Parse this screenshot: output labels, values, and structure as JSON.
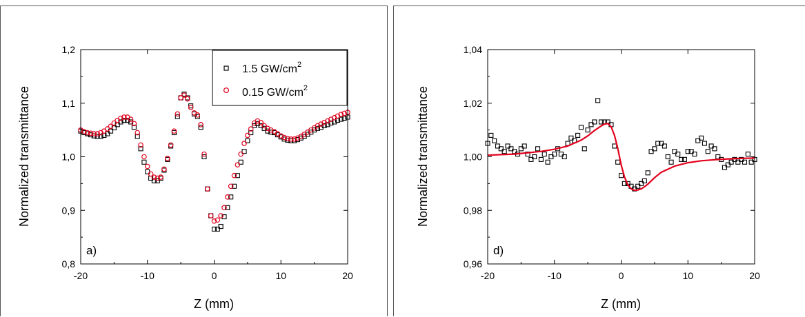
{
  "chart_data": [
    {
      "type": "scatter",
      "panel_label": "a)",
      "xlabel": "Z (mm)",
      "ylabel": "Normalized transmittance",
      "xlim": [
        -20,
        20
      ],
      "ylim": [
        0.8,
        1.2
      ],
      "xticks": [
        -20,
        -10,
        0,
        10,
        20
      ],
      "xtick_labels": [
        "-20",
        "-10",
        "0",
        "10",
        "20"
      ],
      "yticks": [
        0.8,
        0.9,
        1.0,
        1.1,
        1.2
      ],
      "ytick_labels": [
        "0,8",
        "0,9",
        "1,0",
        "1,1",
        "1,2"
      ],
      "legend_position": "top-right",
      "grid": false,
      "series": [
        {
          "name": "1.5 GW/cm",
          "name_sup": "2",
          "marker": "square",
          "color": "#000000",
          "x": [
            -20,
            -19.5,
            -19,
            -18.5,
            -18,
            -17.5,
            -17,
            -16.5,
            -16,
            -15.5,
            -15,
            -14.5,
            -14,
            -13.5,
            -13,
            -12.5,
            -12,
            -11.5,
            -11,
            -10.5,
            -10,
            -9.5,
            -9,
            -8.5,
            -8,
            -7.5,
            -7,
            -6.5,
            -6,
            -5.5,
            -5,
            -4.5,
            -4,
            -3.5,
            -3,
            -2.5,
            -2,
            -1.5,
            -1,
            -0.5,
            0,
            0.5,
            1,
            1.5,
            2,
            2.5,
            3,
            3.5,
            4,
            4.5,
            5,
            5.5,
            6,
            6.5,
            7,
            7.5,
            8,
            8.5,
            9,
            9.5,
            10,
            10.5,
            11,
            11.5,
            12,
            12.5,
            13,
            13.5,
            14,
            14.5,
            15,
            15.5,
            16,
            16.5,
            17,
            17.5,
            18,
            18.5,
            19,
            19.5,
            20
          ],
          "y": [
            1.048,
            1.045,
            1.043,
            1.041,
            1.039,
            1.038,
            1.038,
            1.04,
            1.043,
            1.048,
            1.054,
            1.06,
            1.065,
            1.068,
            1.068,
            1.065,
            1.055,
            1.038,
            1.015,
            0.99,
            0.972,
            0.96,
            0.955,
            0.955,
            0.96,
            0.975,
            0.995,
            1.02,
            1.045,
            1.075,
            1.11,
            1.117,
            1.11,
            1.095,
            1.08,
            1.075,
            1.055,
            1.0,
            0.94,
            0.89,
            0.865,
            0.865,
            0.87,
            0.888,
            0.905,
            0.925,
            0.945,
            0.965,
            0.99,
            1.01,
            1.03,
            1.045,
            1.058,
            1.062,
            1.058,
            1.053,
            1.048,
            1.046,
            1.045,
            1.041,
            1.037,
            1.033,
            1.031,
            1.03,
            1.03,
            1.032,
            1.035,
            1.038,
            1.042,
            1.046,
            1.05,
            1.053,
            1.055,
            1.058,
            1.06,
            1.063,
            1.065,
            1.068,
            1.07,
            1.072,
            1.074
          ]
        },
        {
          "name": "0.15 GW/cm",
          "name_sup": "2",
          "marker": "circle",
          "color": "#e3001b",
          "x": [
            -20,
            -19.5,
            -19,
            -18.5,
            -18,
            -17.5,
            -17,
            -16.5,
            -16,
            -15.5,
            -15,
            -14.5,
            -14,
            -13.5,
            -13,
            -12.5,
            -12,
            -11.5,
            -11,
            -10.5,
            -10,
            -9.5,
            -9,
            -8.5,
            -8,
            -7.5,
            -7,
            -6.5,
            -6,
            -5.5,
            -5,
            -4.5,
            -4,
            -3.5,
            -3,
            -2.5,
            -2,
            -1.5,
            -1,
            -0.5,
            0,
            0.5,
            1,
            1.5,
            2,
            2.5,
            3,
            3.5,
            4,
            4.5,
            5,
            5.5,
            6,
            6.5,
            7,
            7.5,
            8,
            8.5,
            9,
            9.5,
            10,
            10.5,
            11,
            11.5,
            12,
            12.5,
            13,
            13.5,
            14,
            14.5,
            15,
            15.5,
            16,
            16.5,
            17,
            17.5,
            18,
            18.5,
            19,
            19.5,
            20
          ],
          "y": [
            1.05,
            1.047,
            1.045,
            1.044,
            1.043,
            1.043,
            1.045,
            1.048,
            1.052,
            1.057,
            1.063,
            1.068,
            1.072,
            1.074,
            1.074,
            1.07,
            1.062,
            1.045,
            1.022,
            1.0,
            0.982,
            0.968,
            0.962,
            0.96,
            0.962,
            0.977,
            0.997,
            1.022,
            1.048,
            1.08,
            1.11,
            1.115,
            1.108,
            1.092,
            1.082,
            1.078,
            1.06,
            1.005,
            0.94,
            0.89,
            0.88,
            0.882,
            0.89,
            0.905,
            0.925,
            0.945,
            0.965,
            0.985,
            1.005,
            1.025,
            1.04,
            1.052,
            1.063,
            1.067,
            1.064,
            1.058,
            1.053,
            1.05,
            1.047,
            1.043,
            1.039,
            1.036,
            1.034,
            1.033,
            1.033,
            1.035,
            1.038,
            1.042,
            1.046,
            1.05,
            1.054,
            1.058,
            1.061,
            1.064,
            1.067,
            1.07,
            1.073,
            1.076,
            1.079,
            1.081,
            1.083
          ]
        }
      ]
    },
    {
      "type": "scatter",
      "panel_label": "d)",
      "xlabel": "Z (mm)",
      "ylabel": "Normalized transmittance",
      "xlim": [
        -20,
        20
      ],
      "ylim": [
        0.96,
        1.04
      ],
      "xticks": [
        -20,
        -10,
        0,
        10,
        20
      ],
      "xtick_labels": [
        "-20",
        "-10",
        "0",
        "10",
        "20"
      ],
      "yticks": [
        0.96,
        0.98,
        1.0,
        1.02,
        1.04
      ],
      "ytick_labels": [
        "0,96",
        "0,98",
        "1,00",
        "1,02",
        "1,04"
      ],
      "grid": false,
      "series": [
        {
          "marker": "square",
          "color": "#000000",
          "x": [
            -20,
            -19.5,
            -19,
            -18.5,
            -18,
            -17.5,
            -17,
            -16.5,
            -16,
            -15.5,
            -15,
            -14.5,
            -14,
            -13.5,
            -13,
            -12.5,
            -12,
            -11.5,
            -11,
            -10.5,
            -10,
            -9.5,
            -9,
            -8.5,
            -8,
            -7.5,
            -7,
            -6.5,
            -6,
            -5.5,
            -5,
            -4.5,
            -4,
            -3.5,
            -3,
            -2.5,
            -2,
            -1.5,
            -1,
            -0.5,
            0,
            0.5,
            1,
            1.5,
            2,
            2.5,
            3,
            3.5,
            4,
            4.5,
            5,
            5.5,
            6,
            6.5,
            7,
            7.5,
            8,
            8.5,
            9,
            9.5,
            10,
            10.5,
            11,
            11.5,
            12,
            12.5,
            13,
            13.5,
            14,
            14.5,
            15,
            15.5,
            16,
            16.5,
            17,
            17.5,
            18,
            18.5,
            19,
            19.5,
            20
          ],
          "y": [
            1.005,
            1.008,
            1.006,
            1.004,
            1.003,
            1.002,
            1.004,
            1.003,
            1.002,
            1.001,
            1.003,
            1.004,
            1.001,
            0.999,
            1.0,
            1.003,
            0.999,
            1.001,
            0.998,
            1.0,
            1.001,
            1.003,
            1.001,
            1.0,
            1.005,
            1.007,
            1.006,
            1.008,
            1.011,
            1.003,
            1.01,
            1.012,
            1.013,
            1.021,
            1.013,
            1.013,
            1.013,
            1.012,
            1.004,
            0.998,
            0.993,
            0.99,
            0.99,
            0.989,
            0.988,
            0.989,
            0.99,
            0.991,
            0.994,
            1.002,
            1.003,
            1.005,
            1.005,
            1.004,
            1.0,
            0.998,
            1.002,
            1.001,
            0.999,
            0.999,
            1.002,
            1.002,
            1.001,
            1.006,
            1.007,
            1.005,
            1.002,
            1.004,
            1.003,
            1.0,
            0.999,
            0.996,
            0.997,
            0.998,
            0.999,
            0.998,
            0.999,
            0.998,
            1.001,
            0.998,
            0.999
          ]
        },
        {
          "type": "line",
          "color": "#e3001b",
          "x": [
            -20,
            -18,
            -16,
            -14,
            -12,
            -10,
            -8,
            -6,
            -5,
            -4,
            -3,
            -2.5,
            -2,
            -1.5,
            -1,
            -0.5,
            0,
            0.5,
            1,
            1.5,
            2,
            2.5,
            3,
            3.5,
            4,
            5,
            6,
            8,
            10,
            12,
            14,
            16,
            18,
            20
          ],
          "y": [
            1.0006,
            1.0008,
            1.001,
            1.0015,
            1.002,
            1.0028,
            1.004,
            1.0062,
            1.0078,
            1.0098,
            1.0115,
            1.0122,
            1.0124,
            1.0112,
            1.008,
            1.003,
            0.997,
            0.9925,
            0.9895,
            0.988,
            0.9875,
            0.9876,
            0.988,
            0.9888,
            0.9898,
            0.9922,
            0.9942,
            0.9965,
            0.9978,
            0.9985,
            0.9989,
            0.9992,
            0.9994,
            0.9995
          ]
        }
      ]
    }
  ]
}
